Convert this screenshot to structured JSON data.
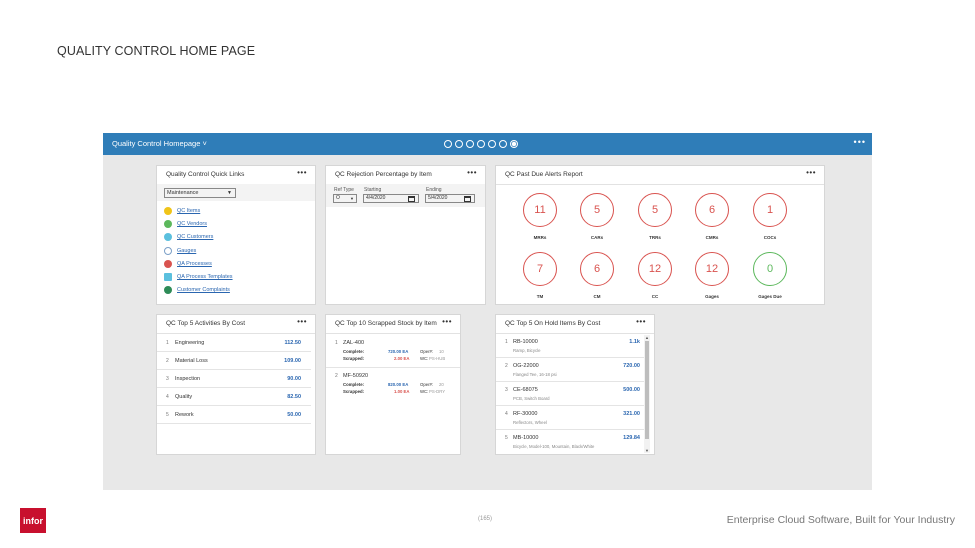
{
  "slide": {
    "title": "QUALITY CONTROL HOME PAGE",
    "page_number": "(165)",
    "tagline": "Enterprise Cloud Software, Built for Your Industry",
    "logo_text": "infor"
  },
  "app": {
    "title": "Quality Control Homepage ˅",
    "page_dots": 7,
    "active_dot": 7,
    "header_more": "•••"
  },
  "quick_links": {
    "title": "Quality Control Quick Links",
    "more": "•••",
    "select_value": "Maintenance",
    "links": [
      {
        "label": "QC Items",
        "icon": "check-icon",
        "color": "#f0c419"
      },
      {
        "label": "QC Vendors",
        "icon": "vendor-icon",
        "color": "#5cb85c"
      },
      {
        "label": "QC Customers",
        "icon": "customer-icon",
        "color": "#5bc0de"
      },
      {
        "label": "Gauges",
        "icon": "gauge-icon",
        "color": "#7b9fc7"
      },
      {
        "label": "QA Processes",
        "icon": "process-icon",
        "color": "#d9534f"
      },
      {
        "label": "QA Process Templates",
        "icon": "template-icon",
        "color": "#5bc0de"
      },
      {
        "label": "Customer Complaints",
        "icon": "complaint-icon",
        "color": "#2e8b57"
      }
    ]
  },
  "rejection": {
    "title": "QC Rejection Percentage by Item",
    "more": "•••",
    "ref_type_label": "Ref Type",
    "ref_type_value": "O",
    "starting_label": "Starting",
    "starting_value": "4/4/2020",
    "ending_label": "Ending",
    "ending_value": "5/4/2020"
  },
  "alerts": {
    "title": "QC Past Due Alerts Report",
    "more": "•••",
    "items": [
      {
        "count": "11",
        "label": "MRRs",
        "status": "red"
      },
      {
        "count": "5",
        "label": "CARs",
        "status": "red"
      },
      {
        "count": "5",
        "label": "TRRs",
        "status": "red"
      },
      {
        "count": "6",
        "label": "CMRs",
        "status": "red"
      },
      {
        "count": "1",
        "label": "COCs",
        "status": "red"
      },
      {
        "count": "7",
        "label": "TM",
        "status": "red"
      },
      {
        "count": "6",
        "label": "CM",
        "status": "red"
      },
      {
        "count": "12",
        "label": "CC",
        "status": "red"
      },
      {
        "count": "12",
        "label": "Gages",
        "status": "red"
      },
      {
        "count": "0",
        "label": "Gages Due",
        "status": "green"
      }
    ]
  },
  "activities": {
    "title": "QC Top 5 Activities By Cost",
    "more": "•••",
    "rows": [
      {
        "idx": "1",
        "name": "Engineering",
        "value": "112.50"
      },
      {
        "idx": "2",
        "name": "Material Loss",
        "value": "109.00"
      },
      {
        "idx": "3",
        "name": "Inspection",
        "value": "90.00"
      },
      {
        "idx": "4",
        "name": "Quality",
        "value": "82.50"
      },
      {
        "idx": "5",
        "name": "Rework",
        "value": "50.00"
      }
    ]
  },
  "scrapped": {
    "title": "QC Top 10 Scrapped Stock by Item",
    "more": "•••",
    "items": [
      {
        "idx": "1",
        "name": "ZAL-400",
        "complete_label": "Complete:",
        "complete_value": "720.00 EA",
        "scrapped_label": "Scrapped:",
        "scrapped_value": "2.00 EA",
        "oper_label": "Oper#:",
        "oper_value": "10",
        "wc_label": "WC:",
        "wc_value": "PS-HUB"
      },
      {
        "idx": "2",
        "name": "MF-50920",
        "complete_label": "Complete:",
        "complete_value": "820.00 EA",
        "scrapped_label": "Scrapped:",
        "scrapped_value": "1.00 EA",
        "oper_label": "Oper#:",
        "oper_value": "20",
        "wc_label": "WC:",
        "wc_value": "PS-DRY"
      }
    ]
  },
  "on_hold": {
    "title": "QC Top 5 On Hold Items By Cost",
    "more": "•••",
    "rows": [
      {
        "idx": "1",
        "name": "RB-10000",
        "sub": "Ramp, Bicycle",
        "value": "1.1k"
      },
      {
        "idx": "2",
        "name": "OG-22000",
        "sub": "Flanged Tee, 16-18 psi",
        "value": "720.00"
      },
      {
        "idx": "3",
        "name": "CE-68075",
        "sub": "PCB, Switch Board",
        "value": "500.00"
      },
      {
        "idx": "4",
        "name": "RF-30000",
        "sub": "Reflectors, Wheel",
        "value": "321.00"
      },
      {
        "idx": "5",
        "name": "MB-10000",
        "sub": "Bicycle, Model-100, Mountain, Black/White",
        "value": "129.84"
      }
    ],
    "scroll_up": "▲",
    "scroll_down": "▼"
  }
}
